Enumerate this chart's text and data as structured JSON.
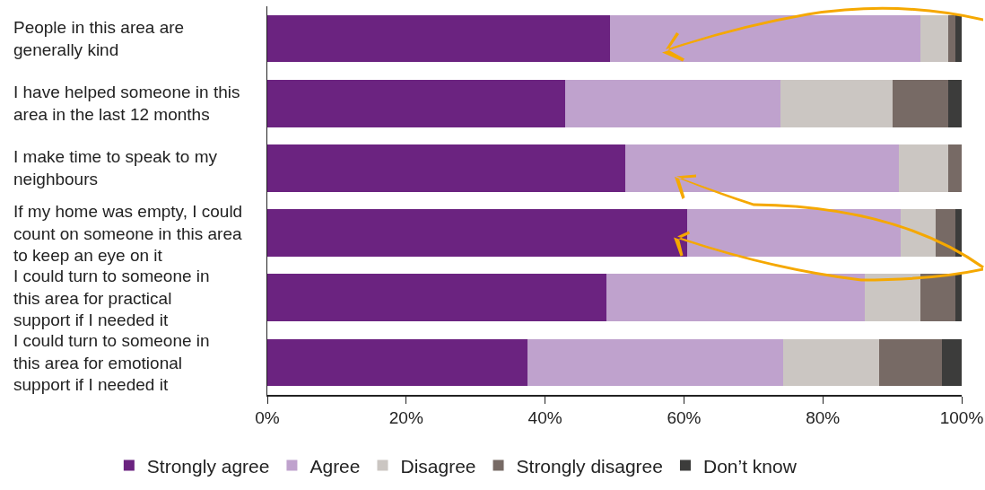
{
  "chart_data": {
    "type": "bar",
    "orientation": "horizontal",
    "stacked": true,
    "legend": "bottom",
    "grid": false,
    "categories": [
      "People in this area are generally kind",
      "I have helped someone in this area in the last 12 months",
      "I make time to speak to my neighbours",
      "If my home was empty, I could count on someone in this area to keep an eye on it",
      "I could turn to someone in this area for practical support if I needed it",
      "I could turn to someone in this area for emotional support if I needed it"
    ],
    "series": [
      {
        "name": "Strongly agree",
        "color": "#6b2380",
        "values": [
          49.4,
          42.9,
          51.5,
          60.4,
          48.9,
          37.5
        ]
      },
      {
        "name": "Agree",
        "color": "#bfa2cd",
        "values": [
          44.6,
          31.0,
          39.4,
          30.8,
          37.2,
          36.8
        ]
      },
      {
        "name": "Disagree",
        "color": "#cbc6c2",
        "values": [
          4.1,
          16.1,
          7.2,
          5.0,
          7.9,
          13.8
        ]
      },
      {
        "name": "Strongly disagree",
        "color": "#776a65",
        "values": [
          1.0,
          8.1,
          1.9,
          2.9,
          5.1,
          9.0
        ]
      },
      {
        "name": "Don’t know",
        "color": "#3c3c3b",
        "values": [
          0.9,
          1.9,
          0,
          0.9,
          0.9,
          2.9
        ]
      }
    ],
    "xlim": [
      0,
      100
    ],
    "xticks": [
      {
        "value": 0,
        "label": "0%"
      },
      {
        "value": 20,
        "label": "20%"
      },
      {
        "value": 40,
        "label": "40%"
      },
      {
        "value": 60,
        "label": "60%"
      },
      {
        "value": 80,
        "label": "80%"
      },
      {
        "value": 100,
        "label": "100%"
      }
    ]
  }
}
